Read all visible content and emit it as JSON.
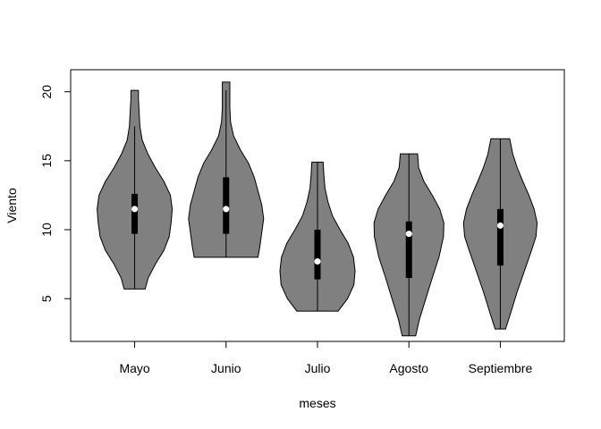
{
  "chart_data": {
    "type": "violin",
    "title": "",
    "xlabel": "meses",
    "ylabel": "Viento",
    "ylim": [
      1.9,
      21.6
    ],
    "yticks": [
      5,
      10,
      15,
      20
    ],
    "grid": false,
    "fill_color": "#808080",
    "median_color": "#ffffff",
    "box_color": "#000000",
    "categories": [
      "Mayo",
      "Junio",
      "Julio",
      "Agosto",
      "Septiembre"
    ],
    "series": [
      {
        "category": "Mayo",
        "min": 5.7,
        "q1": 9.7,
        "median": 11.5,
        "q3": 12.6,
        "max": 20.1,
        "whisker_low": 5.7,
        "whisker_high": 17.5,
        "density": [
          [
            5.7,
            0.28
          ],
          [
            6.5,
            0.36
          ],
          [
            7.5,
            0.55
          ],
          [
            8.5,
            0.78
          ],
          [
            9.5,
            0.92
          ],
          [
            10.5,
            0.97
          ],
          [
            11.5,
            1.0
          ],
          [
            12.5,
            0.95
          ],
          [
            13.5,
            0.78
          ],
          [
            14.5,
            0.55
          ],
          [
            15.5,
            0.35
          ],
          [
            16.5,
            0.2
          ],
          [
            17.5,
            0.14
          ],
          [
            18.5,
            0.12
          ],
          [
            19.5,
            0.1
          ],
          [
            20.1,
            0.1
          ]
        ]
      },
      {
        "category": "Junio",
        "min": 8.0,
        "q1": 9.7,
        "median": 11.5,
        "q3": 13.8,
        "max": 20.7,
        "whisker_low": 8.0,
        "whisker_high": 20.1,
        "density": [
          [
            8.0,
            0.85
          ],
          [
            8.8,
            0.9
          ],
          [
            9.8,
            0.95
          ],
          [
            10.8,
            1.0
          ],
          [
            11.8,
            0.95
          ],
          [
            12.8,
            0.85
          ],
          [
            13.8,
            0.75
          ],
          [
            14.8,
            0.6
          ],
          [
            15.8,
            0.38
          ],
          [
            16.8,
            0.2
          ],
          [
            17.8,
            0.12
          ],
          [
            18.8,
            0.1
          ],
          [
            19.8,
            0.1
          ],
          [
            20.7,
            0.1
          ]
        ]
      },
      {
        "category": "Julio",
        "min": 4.1,
        "q1": 6.4,
        "median": 7.7,
        "q3": 10.0,
        "max": 14.9,
        "whisker_low": 4.1,
        "whisker_high": 14.9,
        "density": [
          [
            4.1,
            0.55
          ],
          [
            5.0,
            0.8
          ],
          [
            6.0,
            0.97
          ],
          [
            7.0,
            1.0
          ],
          [
            8.0,
            0.96
          ],
          [
            9.0,
            0.82
          ],
          [
            10.0,
            0.6
          ],
          [
            11.0,
            0.4
          ],
          [
            12.0,
            0.28
          ],
          [
            13.0,
            0.2
          ],
          [
            14.0,
            0.17
          ],
          [
            14.9,
            0.15
          ]
        ]
      },
      {
        "category": "Agosto",
        "min": 2.3,
        "q1": 6.5,
        "median": 9.7,
        "q3": 10.6,
        "max": 15.5,
        "whisker_low": 2.3,
        "whisker_high": 15.5,
        "density": [
          [
            2.3,
            0.18
          ],
          [
            3.5,
            0.28
          ],
          [
            5.0,
            0.45
          ],
          [
            6.5,
            0.62
          ],
          [
            8.0,
            0.8
          ],
          [
            9.5,
            0.92
          ],
          [
            10.5,
            0.93
          ],
          [
            11.5,
            0.82
          ],
          [
            12.5,
            0.62
          ],
          [
            13.5,
            0.4
          ],
          [
            14.5,
            0.26
          ],
          [
            15.5,
            0.23
          ]
        ]
      },
      {
        "category": "Septiembre",
        "min": 2.8,
        "q1": 7.4,
        "median": 10.3,
        "q3": 11.5,
        "max": 16.6,
        "whisker_low": 2.8,
        "whisker_high": 16.6,
        "density": [
          [
            2.8,
            0.14
          ],
          [
            4.0,
            0.28
          ],
          [
            5.5,
            0.45
          ],
          [
            7.0,
            0.64
          ],
          [
            8.5,
            0.83
          ],
          [
            9.5,
            0.95
          ],
          [
            10.5,
            0.98
          ],
          [
            11.5,
            0.9
          ],
          [
            12.5,
            0.76
          ],
          [
            13.5,
            0.6
          ],
          [
            14.5,
            0.45
          ],
          [
            15.5,
            0.33
          ],
          [
            16.6,
            0.25
          ]
        ]
      }
    ]
  }
}
